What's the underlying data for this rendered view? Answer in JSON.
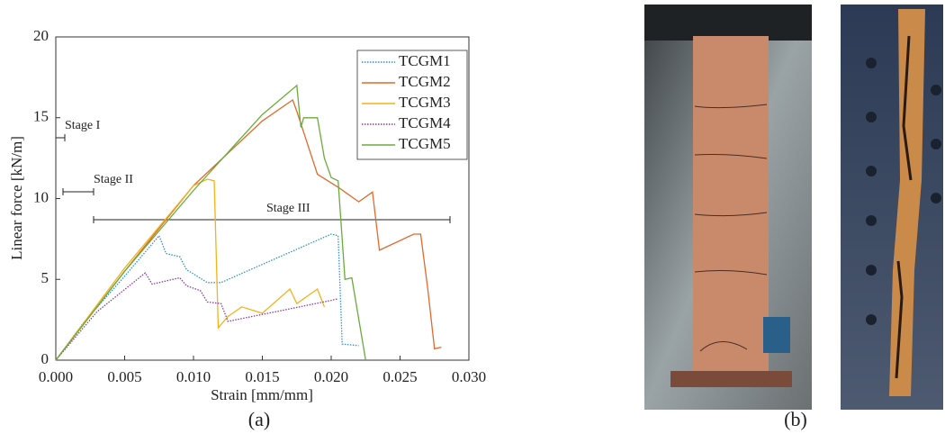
{
  "chart_data": {
    "type": "line",
    "xlabel": "Strain [mm/mm]",
    "ylabel": "Linear force [kN/m]",
    "xlim": [
      0,
      0.03
    ],
    "ylim": [
      0,
      20
    ],
    "xticks": [
      {
        "value": 0,
        "label": "0.000"
      },
      0.005,
      {
        "value": 0.01,
        "label": "0.010"
      },
      0.015,
      {
        "value": 0.02,
        "label": "0.020"
      },
      0.025,
      {
        "value": 0.03,
        "label": "0.030"
      }
    ],
    "yticks": [
      0,
      5,
      10,
      15,
      20
    ],
    "annotations": [
      "Stage I",
      "Stage II",
      "Stage III"
    ],
    "legend": "upper right",
    "series": [
      {
        "name": "TCGM1",
        "color": "#2f8fd8",
        "linestyle": "dotted",
        "x": [
          0,
          0.002,
          0.005,
          0.0075,
          0.008,
          0.009,
          0.0095,
          0.011,
          0.012,
          0.016,
          0.02,
          0.0205,
          0.0208,
          0.022
        ],
        "values": [
          0,
          2.3,
          5.2,
          7.7,
          6.6,
          6.4,
          5.6,
          4.8,
          4.8,
          6.3,
          7.8,
          7.7,
          1.0,
          0.9
        ]
      },
      {
        "name": "TCGM2",
        "color": "#e06a2c",
        "linestyle": "solid",
        "x": [
          0,
          0.005,
          0.01,
          0.015,
          0.0172,
          0.0175,
          0.019,
          0.0205,
          0.022,
          0.023,
          0.0235,
          0.026,
          0.0265,
          0.027,
          0.0275,
          0.028
        ],
        "values": [
          0,
          5.5,
          10.8,
          14.8,
          16.1,
          15.4,
          11.5,
          10.7,
          9.8,
          10.4,
          6.8,
          7.8,
          7.8,
          4.5,
          0.7,
          0.8
        ]
      },
      {
        "name": "TCGM3",
        "color": "#f2b21b",
        "linestyle": "solid",
        "x": [
          0,
          0.005,
          0.01,
          0.011,
          0.0115,
          0.0118,
          0.0125,
          0.0135,
          0.015,
          0.017,
          0.0175,
          0.019,
          0.0195
        ],
        "values": [
          0,
          5.7,
          10.8,
          11.2,
          11.1,
          2.0,
          2.7,
          3.3,
          2.9,
          4.4,
          3.5,
          4.4,
          3.3
        ]
      },
      {
        "name": "TCGM4",
        "color": "#8a3aa8",
        "linestyle": "dotted",
        "x": [
          0,
          0.003,
          0.0065,
          0.007,
          0.009,
          0.0095,
          0.0105,
          0.011,
          0.012,
          0.0125,
          0.016,
          0.02,
          0.0205
        ],
        "values": [
          0,
          3,
          5.4,
          4.7,
          5.1,
          4.6,
          4.3,
          3.6,
          3.5,
          2.4,
          3.0,
          3.7,
          3.8
        ]
      },
      {
        "name": "TCGM5",
        "color": "#6aab3a",
        "linestyle": "solid",
        "x": [
          0,
          0.005,
          0.01,
          0.015,
          0.0175,
          0.0178,
          0.018,
          0.019,
          0.0195,
          0.02,
          0.0205,
          0.021,
          0.0215,
          0.0225
        ],
        "values": [
          0,
          5.5,
          10.5,
          15.2,
          17.0,
          14.4,
          15.0,
          15.0,
          12.5,
          11.3,
          11.1,
          5.0,
          5.1,
          0
        ]
      }
    ]
  },
  "captions": [
    "(a)",
    "(b)"
  ]
}
